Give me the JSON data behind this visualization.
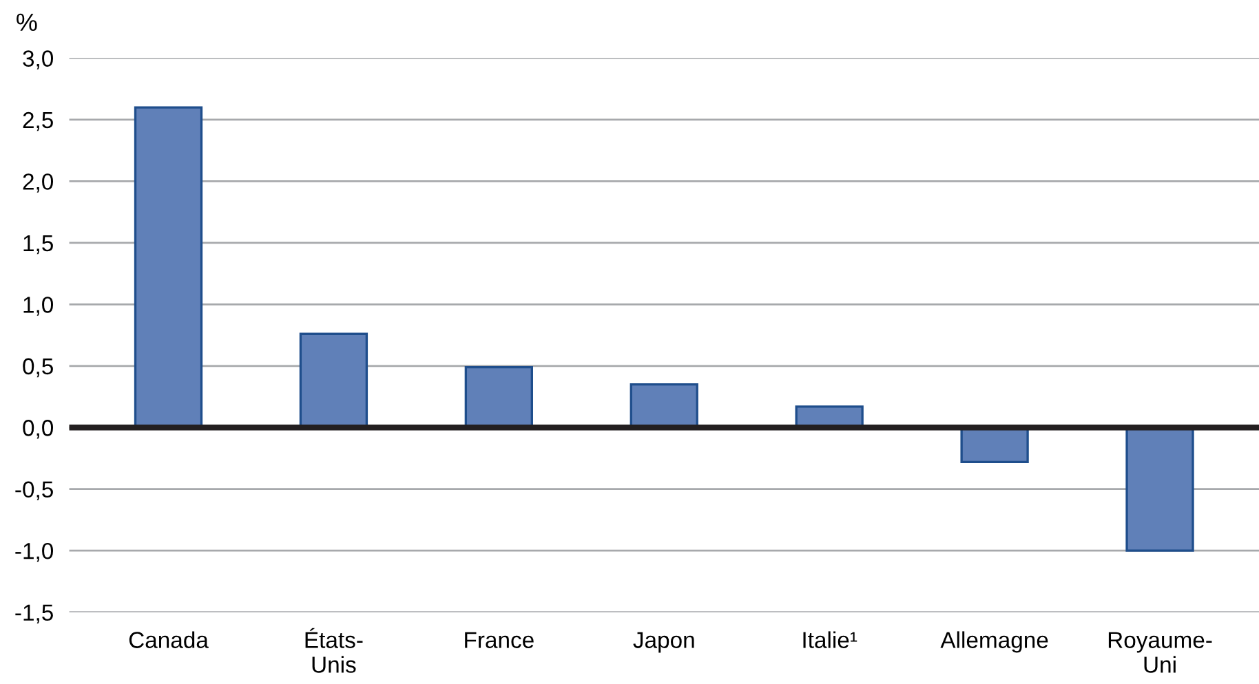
{
  "chart_data": {
    "type": "bar",
    "ylabel": "%",
    "categories": [
      "Canada",
      "États-\nUnis",
      "France",
      "Japon",
      "Italie¹",
      "Allemagne",
      "Royaume-\nUni"
    ],
    "values": [
      2.6,
      0.76,
      0.49,
      0.35,
      0.17,
      -0.28,
      -1.0
    ],
    "color": "#6080b8",
    "ylim": [
      -1.5,
      3.0
    ],
    "yticks": [
      {
        "value": -1.5,
        "label": "-1,5"
      },
      {
        "value": -1.0,
        "label": "-1,0"
      },
      {
        "value": -0.5,
        "label": "-0,5"
      },
      {
        "value": 0.0,
        "label": "0,0"
      },
      {
        "value": 0.5,
        "label": "0,5"
      },
      {
        "value": 1.0,
        "label": "1,0"
      },
      {
        "value": 1.5,
        "label": "1,5"
      },
      {
        "value": 2.0,
        "label": "2,0"
      },
      {
        "value": 2.5,
        "label": "2,5"
      },
      {
        "value": 3.0,
        "label": "3,0"
      }
    ],
    "grid": "y",
    "ref_lines": [
      {
        "axis": "y",
        "value": 0,
        "color": "#231f20"
      }
    ]
  }
}
